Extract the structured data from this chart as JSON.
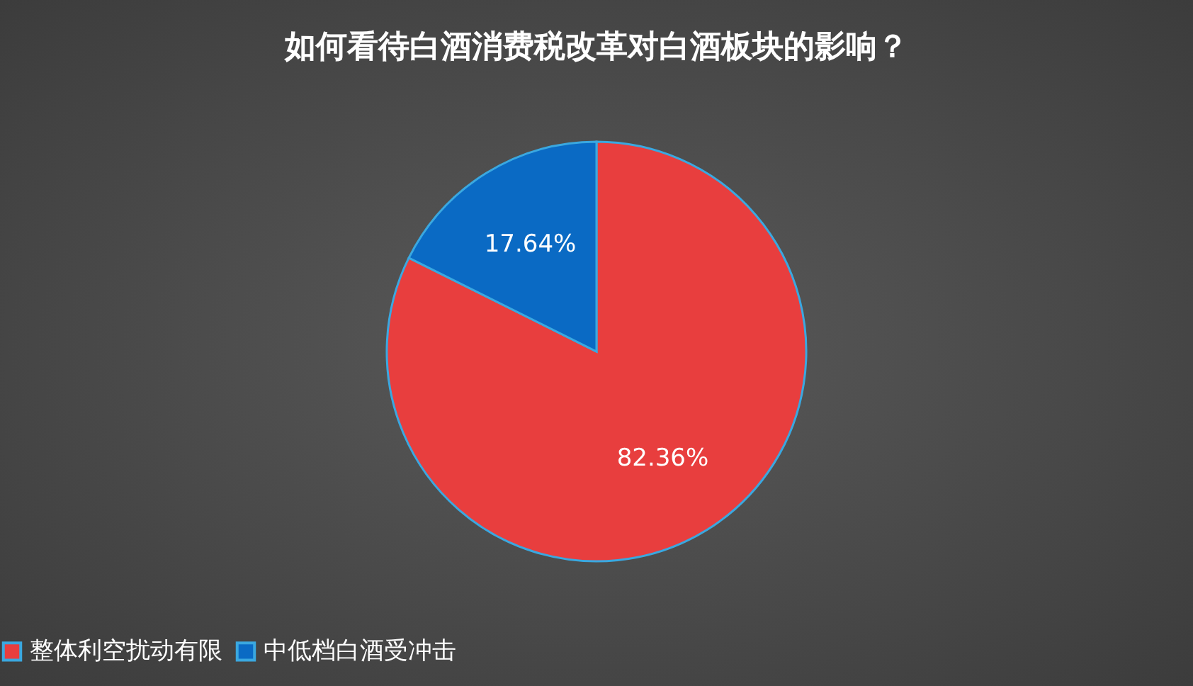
{
  "chart_data": {
    "type": "pie",
    "title": "如何看待白酒消费税改革对白酒板块的影响？",
    "categories": [
      "整体利空扰动有限",
      "中低档白酒受冲击"
    ],
    "values": [
      82.36,
      17.64
    ],
    "value_labels": [
      "82.36%",
      "17.64%"
    ],
    "colors": [
      "#e83e3e",
      "#0a6ac4"
    ],
    "legend": "bottom"
  }
}
